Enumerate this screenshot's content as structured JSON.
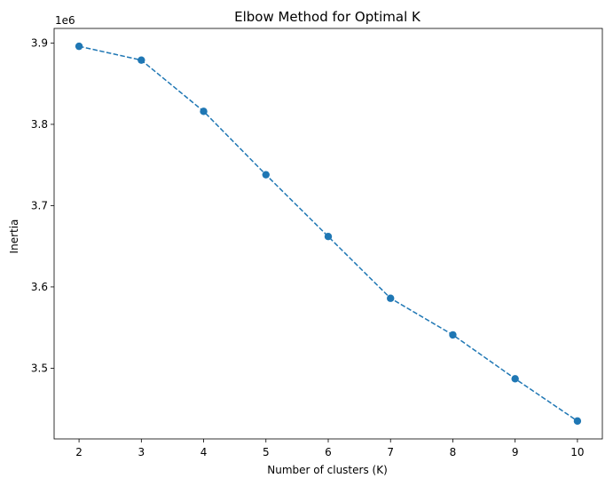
{
  "chart_data": {
    "type": "line",
    "title": "Elbow Method for Optimal K",
    "xlabel": "Number of clusters (K)",
    "ylabel": "Inertia",
    "y_offset_label": "1e6",
    "x": [
      2,
      3,
      4,
      5,
      6,
      7,
      8,
      9,
      10
    ],
    "series": [
      {
        "values": [
          3.896,
          3.879,
          3.816,
          3.738,
          3.662,
          3.586,
          3.541,
          3.487,
          3.435
        ],
        "color": "#1f77b4",
        "line_style": "dashed",
        "marker": "circle"
      }
    ],
    "x_ticks": [
      "2",
      "3",
      "4",
      "5",
      "6",
      "7",
      "8",
      "9",
      "10"
    ],
    "y_ticks": [
      "3.5",
      "3.6",
      "3.7",
      "3.8",
      "3.9"
    ],
    "xlim": [
      1.6,
      10.4
    ],
    "ylim": [
      3.413,
      3.918
    ],
    "grid": false
  }
}
